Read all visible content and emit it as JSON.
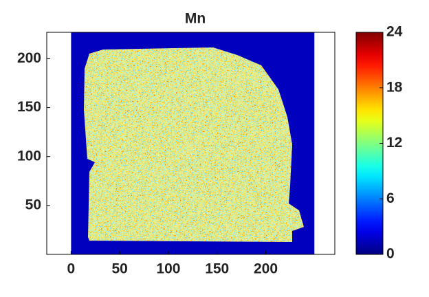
{
  "chart_data": {
    "type": "heatmap",
    "title": "Mn",
    "xlim": [
      -25,
      271
    ],
    "ylim": [
      0,
      227
    ],
    "xticks": [
      0,
      50,
      100,
      150,
      200
    ],
    "yticks": [
      50,
      100,
      150,
      200
    ],
    "image_xlim": [
      0,
      250
    ],
    "colormap": "jet",
    "colorbar": {
      "clim": [
        0,
        24
      ],
      "ticks": [
        0,
        6,
        12,
        18,
        24
      ]
    }
  }
}
